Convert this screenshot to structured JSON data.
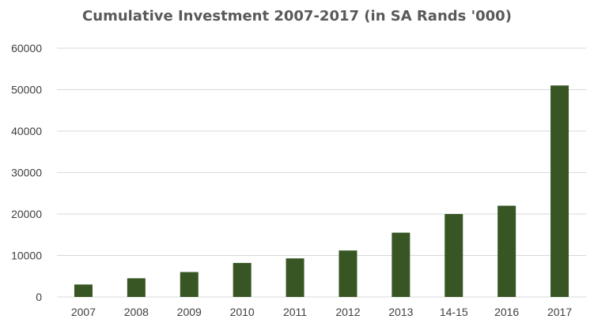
{
  "chart_data": {
    "type": "bar",
    "title": "Cumulative Investment 2007-2017 (in SA Rands  '000)",
    "categories": [
      "2007",
      "2008",
      "2009",
      "2010",
      "2011",
      "2012",
      "2013",
      "14-15",
      "2016",
      "2017"
    ],
    "values": [
      3000,
      4500,
      6000,
      8200,
      9300,
      11200,
      15500,
      20000,
      22000,
      51000
    ],
    "xlabel": "",
    "ylabel": "",
    "ylim": [
      0,
      60000
    ],
    "yticks": [
      0,
      10000,
      20000,
      30000,
      40000,
      50000,
      60000
    ],
    "ytick_labels": [
      "0",
      "10000",
      "20000",
      "30000",
      "40000",
      "50000",
      "60000"
    ],
    "grid": true,
    "legend": "none",
    "bar_color": "#375623",
    "grid_color": "#d9d9d9"
  }
}
